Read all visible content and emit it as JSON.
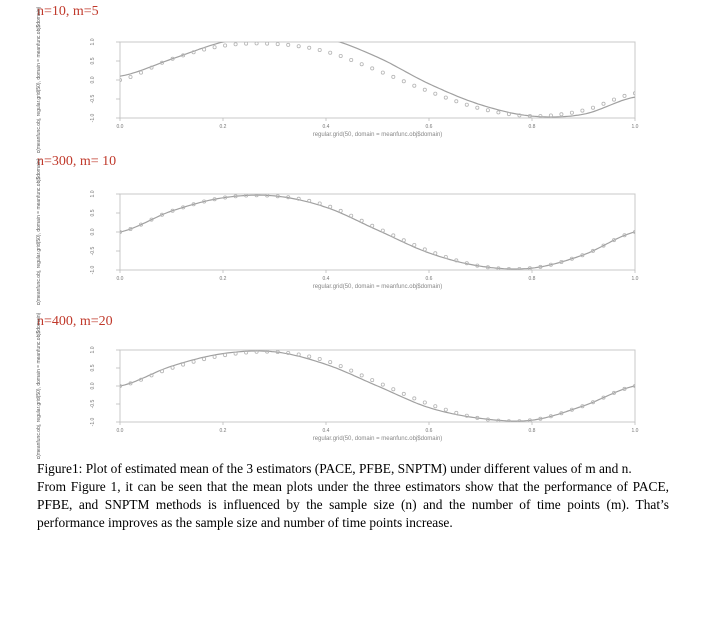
{
  "panels": [
    {
      "label": "n=10, m=5",
      "xlabel": "regular.grid(50, domain = meanfunc.obj$domain)",
      "ylabel": "c(meanfunc.obj, regular.grid(50), domain = meanfunc.obj$domain)",
      "yticks": [
        "1.0",
        "0.5",
        "0.0",
        "-0.5",
        "-1.0"
      ],
      "xticks": [
        "0.0",
        "0.2",
        "0.4",
        "0.6",
        "0.8",
        "1.0"
      ]
    },
    {
      "label": "n=300, m= 10",
      "xlabel": "regular.grid(50, domain = meanfunc.obj$domain)",
      "ylabel": "c(meanfunc.obj, regular.grid(50), domain = meanfunc.obj$domain)",
      "yticks": [
        "1.0",
        "0.5",
        "0.0",
        "-0.5",
        "-1.0"
      ],
      "xticks": [
        "0.0",
        "0.2",
        "0.4",
        "0.6",
        "0.8",
        "1.0"
      ]
    },
    {
      "label": "n=400, m=20",
      "xlabel": "regular.grid(50, domain = meanfunc.obj$domain)",
      "ylabel": "c(meanfunc.obj, regular.grid(50), domain = meanfunc.obj$domain)",
      "yticks": [
        "1.0",
        "0.5",
        "0.0",
        "-0.5",
        "-1.0"
      ],
      "xticks": [
        "0.0",
        "0.2",
        "0.4",
        "0.6",
        "0.8",
        "1.0"
      ]
    }
  ],
  "caption": {
    "figure": "Figure1: Plot of estimated mean of the 3 estimators (PACE, PFBE, SNPTM) under different values of m and n.",
    "body": "From Figure 1, it can be seen that the mean plots under the three estimators show that the performance of PACE, PFBE, and SNPTM methods is influenced by the sample size (n) and the number of time points (m). That’s performance improves as the sample size and number of time points increase."
  },
  "colors": {
    "label": "#c0392b",
    "curve": "#a0a0a0",
    "points": "#b5b5b5",
    "frame": "#c8c8c8"
  },
  "chart_data": [
    {
      "type": "line",
      "title": "n=10, m=5",
      "xlim": [
        0,
        1
      ],
      "ylim": [
        -1,
        1
      ],
      "series": [
        {
          "style": "line",
          "x": [
            0.0,
            0.1,
            0.2,
            0.3,
            0.4,
            0.5,
            0.6,
            0.7,
            0.8,
            0.9,
            1.0
          ],
          "y": [
            0.1,
            0.55,
            1.0,
            1.2,
            1.1,
            0.6,
            -0.1,
            -0.65,
            -0.95,
            -0.9,
            -0.45
          ]
        },
        {
          "style": "points",
          "x": [
            0.0,
            0.1,
            0.2,
            0.3,
            0.4,
            0.5,
            0.6,
            0.7,
            0.8,
            0.9,
            1.0
          ],
          "y": [
            0.0,
            0.55,
            0.9,
            0.95,
            0.75,
            0.25,
            -0.3,
            -0.75,
            -0.95,
            -0.8,
            -0.35
          ]
        }
      ]
    },
    {
      "type": "line",
      "title": "n=300, m= 10",
      "xlim": [
        0,
        1
      ],
      "ylim": [
        -1,
        1
      ],
      "series": [
        {
          "style": "line",
          "x": [
            0.0,
            0.1,
            0.2,
            0.3,
            0.4,
            0.5,
            0.6,
            0.7,
            0.8,
            0.9,
            1.0
          ],
          "y": [
            0.0,
            0.55,
            0.9,
            0.95,
            0.65,
            0.05,
            -0.55,
            -0.9,
            -0.95,
            -0.6,
            0.0
          ]
        },
        {
          "style": "points",
          "x": [
            0.0,
            0.1,
            0.2,
            0.3,
            0.4,
            0.5,
            0.6,
            0.7,
            0.8,
            0.9,
            1.0
          ],
          "y": [
            0.0,
            0.55,
            0.9,
            0.95,
            0.7,
            0.1,
            -0.5,
            -0.9,
            -0.95,
            -0.6,
            0.0
          ]
        }
      ]
    },
    {
      "type": "line",
      "title": "n=400, m=20",
      "xlim": [
        0,
        1
      ],
      "ylim": [
        -1,
        1
      ],
      "series": [
        {
          "style": "line",
          "x": [
            0.0,
            0.1,
            0.2,
            0.3,
            0.4,
            0.5,
            0.6,
            0.7,
            0.8,
            0.9,
            1.0
          ],
          "y": [
            0.0,
            0.55,
            0.9,
            0.95,
            0.6,
            0.0,
            -0.6,
            -0.9,
            -0.95,
            -0.55,
            0.0
          ]
        },
        {
          "style": "points",
          "x": [
            0.0,
            0.1,
            0.2,
            0.3,
            0.4,
            0.5,
            0.6,
            0.7,
            0.8,
            0.9,
            1.0
          ],
          "y": [
            0.0,
            0.5,
            0.85,
            0.95,
            0.7,
            0.1,
            -0.5,
            -0.9,
            -0.95,
            -0.55,
            0.0
          ]
        }
      ]
    }
  ]
}
